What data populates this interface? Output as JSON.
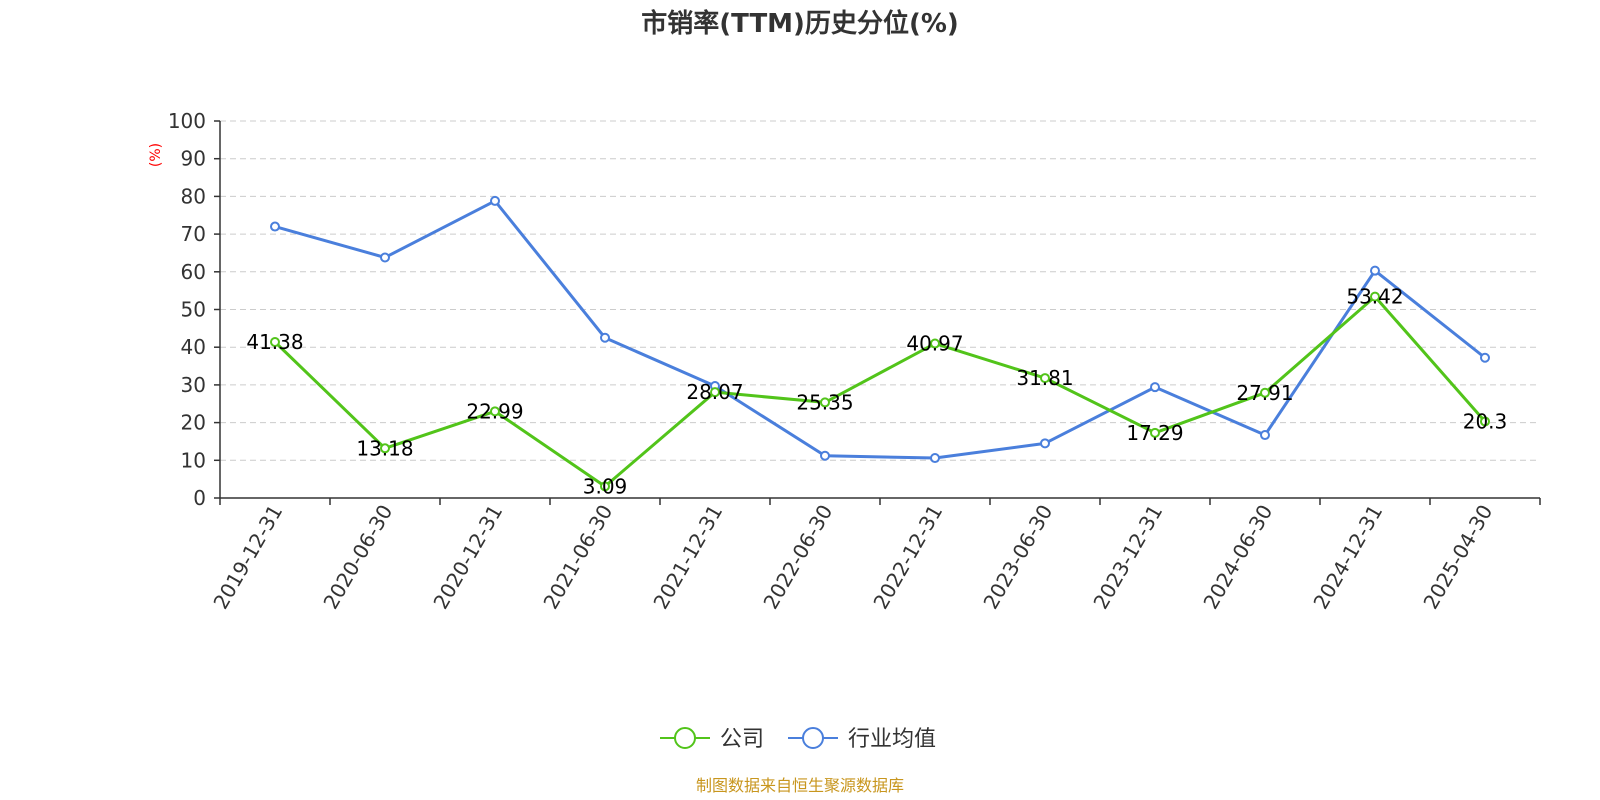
{
  "chart_data": {
    "type": "line",
    "title": "市销率(TTM)历史分位(%)",
    "ylabel": "(%)",
    "xlabel": "",
    "categories": [
      "2019-12-31",
      "2020-06-30",
      "2020-12-31",
      "2021-06-30",
      "2021-12-31",
      "2022-06-30",
      "2022-12-31",
      "2023-06-30",
      "2023-12-31",
      "2024-06-30",
      "2024-12-31",
      "2025-04-30"
    ],
    "ylim": [
      0,
      100
    ],
    "yticks": [
      0,
      10,
      20,
      30,
      40,
      50,
      60,
      70,
      80,
      90,
      100
    ],
    "grid": true,
    "legend_position": "bottom",
    "series": [
      {
        "name": "公司",
        "color": "#52c41a",
        "values": [
          41.38,
          13.18,
          22.99,
          3.09,
          28.07,
          25.35,
          40.97,
          31.81,
          17.29,
          27.91,
          53.42,
          20.3
        ],
        "labels": [
          "41.38",
          "13.18",
          "22.99",
          "3.09",
          "28.07",
          "25.35",
          "40.97",
          "31.81",
          "17.29",
          "27.91",
          "53.42",
          "20.3"
        ]
      },
      {
        "name": "行业均值",
        "color": "#4a7fdc",
        "values": [
          72,
          63.8,
          78.8,
          42.5,
          29.7,
          11.2,
          10.6,
          14.5,
          29.4,
          16.7,
          60.3,
          37.2
        ]
      }
    ]
  },
  "footer": {
    "source": "制图数据来自恒生聚源数据库"
  }
}
